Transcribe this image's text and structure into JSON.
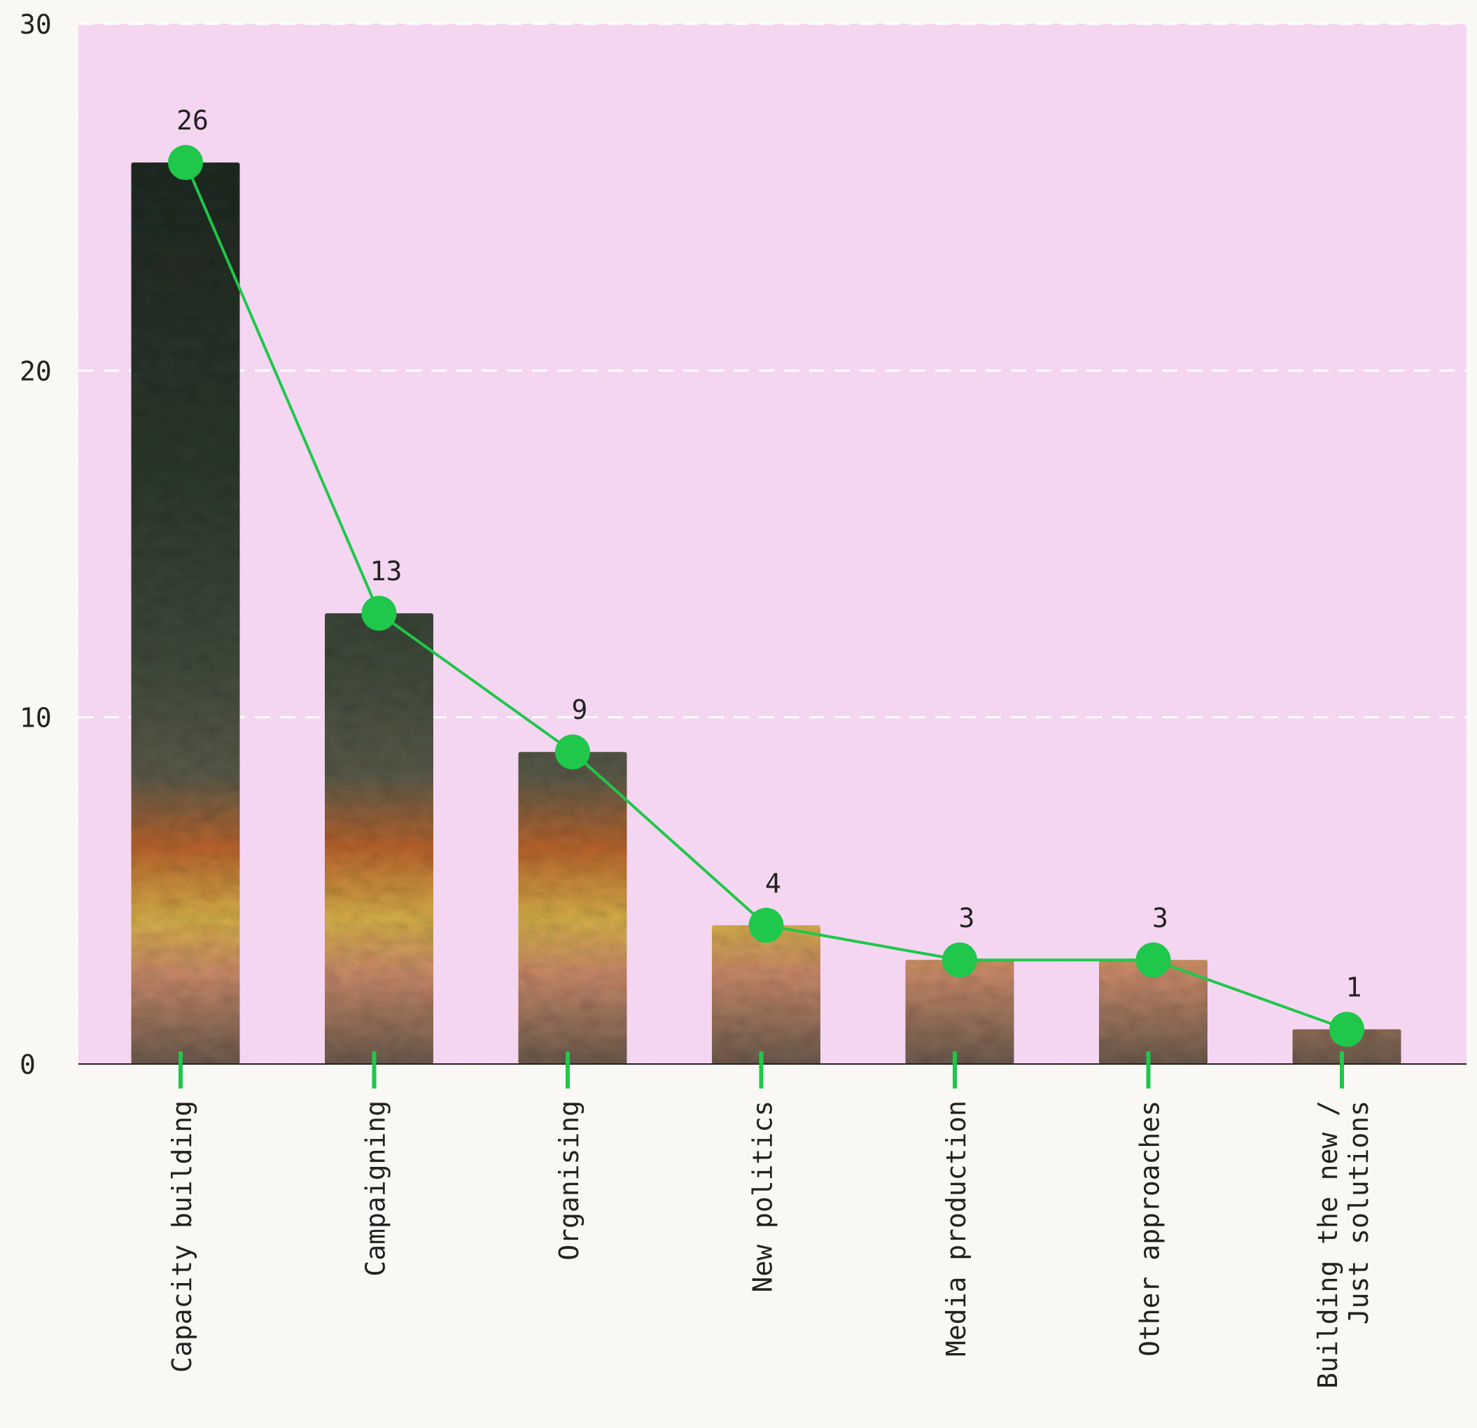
{
  "chart_data": {
    "type": "bar",
    "title": "",
    "xlabel": "",
    "ylabel": "",
    "categories": [
      "Capacity building",
      "Campaigning",
      "Organising",
      "New politics",
      "Media production",
      "Other approaches",
      "Building the new / Just solutions"
    ],
    "category_lines": [
      [
        "Capacity building"
      ],
      [
        "Campaigning"
      ],
      [
        "Organising"
      ],
      [
        "New politics"
      ],
      [
        "Media production"
      ],
      [
        "Other approaches"
      ],
      [
        "Building the new /",
        "Just solutions"
      ]
    ],
    "values": [
      26,
      13,
      9,
      4,
      3,
      3,
      1
    ],
    "data_labels": [
      "26",
      "13",
      "9",
      "4",
      "3",
      "3",
      "1"
    ],
    "ylim": [
      0,
      30
    ],
    "yticks": [
      0,
      10,
      20,
      30
    ],
    "ytick_labels": [
      "0",
      "10",
      "20",
      "30"
    ],
    "grid": true,
    "line_overlay": true,
    "bar_fill": "photograph texture",
    "colors": {
      "plot_background": "#f7d9f4",
      "page_background": "#f9f8f4",
      "line_and_markers": "#1fc74a",
      "gridline": "#ffffff",
      "axis": "#222222",
      "text": "#222222"
    }
  }
}
